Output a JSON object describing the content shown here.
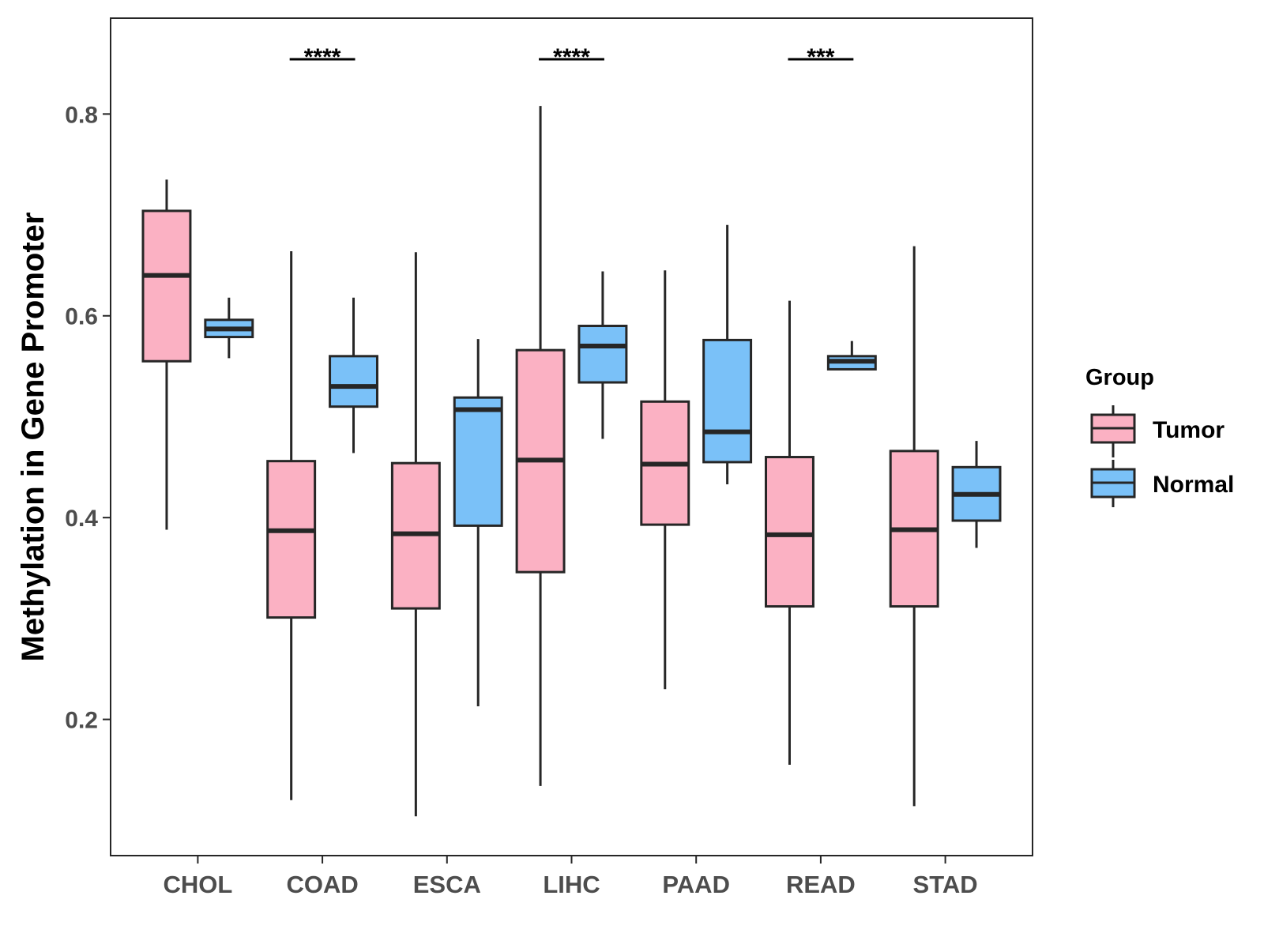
{
  "colors": {
    "tumor": "#FBB1C3",
    "normal": "#7AC1F8",
    "outline": "#262626",
    "axis": "#262626"
  },
  "chart_data": {
    "type": "box",
    "ylabel": "Methylation in Gene Promoter",
    "xlabel": "",
    "ylim": [
      0.065,
      0.895
    ],
    "yticks": [
      0.2,
      0.4,
      0.6,
      0.8
    ],
    "ytick_labels": [
      "0.2",
      "0.4",
      "0.6",
      "0.8"
    ],
    "grid": false,
    "legend": {
      "title": "Group",
      "position": "right",
      "entries": [
        "Tumor",
        "Normal"
      ]
    },
    "categories": [
      "CHOL",
      "COAD",
      "ESCA",
      "LIHC",
      "PAAD",
      "READ",
      "STAD"
    ],
    "series": [
      {
        "name": "Tumor",
        "boxes": [
          {
            "min": 0.388,
            "q1": 0.555,
            "median": 0.64,
            "q3": 0.704,
            "max": 0.735
          },
          {
            "min": 0.12,
            "q1": 0.301,
            "median": 0.387,
            "q3": 0.456,
            "max": 0.664
          },
          {
            "min": 0.104,
            "q1": 0.31,
            "median": 0.384,
            "q3": 0.454,
            "max": 0.663
          },
          {
            "min": 0.134,
            "q1": 0.346,
            "median": 0.457,
            "q3": 0.566,
            "max": 0.808
          },
          {
            "min": 0.23,
            "q1": 0.393,
            "median": 0.453,
            "q3": 0.515,
            "max": 0.645
          },
          {
            "min": 0.155,
            "q1": 0.312,
            "median": 0.383,
            "q3": 0.46,
            "max": 0.615
          },
          {
            "min": 0.114,
            "q1": 0.312,
            "median": 0.388,
            "q3": 0.466,
            "max": 0.669
          }
        ]
      },
      {
        "name": "Normal",
        "boxes": [
          {
            "min": 0.558,
            "q1": 0.579,
            "median": 0.587,
            "q3": 0.596,
            "max": 0.618
          },
          {
            "min": 0.464,
            "q1": 0.51,
            "median": 0.53,
            "q3": 0.56,
            "max": 0.618
          },
          {
            "min": 0.213,
            "q1": 0.392,
            "median": 0.507,
            "q3": 0.519,
            "max": 0.577
          },
          {
            "min": 0.478,
            "q1": 0.534,
            "median": 0.57,
            "q3": 0.59,
            "max": 0.644
          },
          {
            "min": 0.433,
            "q1": 0.455,
            "median": 0.485,
            "q3": 0.576,
            "max": 0.69
          },
          {
            "min": 0.546,
            "q1": 0.547,
            "median": 0.555,
            "q3": 0.56,
            "max": 0.575
          },
          {
            "min": 0.37,
            "q1": 0.397,
            "median": 0.423,
            "q3": 0.45,
            "max": 0.476
          }
        ]
      }
    ],
    "annotations": [
      {
        "category": "COAD",
        "text": "****"
      },
      {
        "category": "LIHC",
        "text": "****"
      },
      {
        "category": "READ",
        "text": "***"
      }
    ]
  }
}
